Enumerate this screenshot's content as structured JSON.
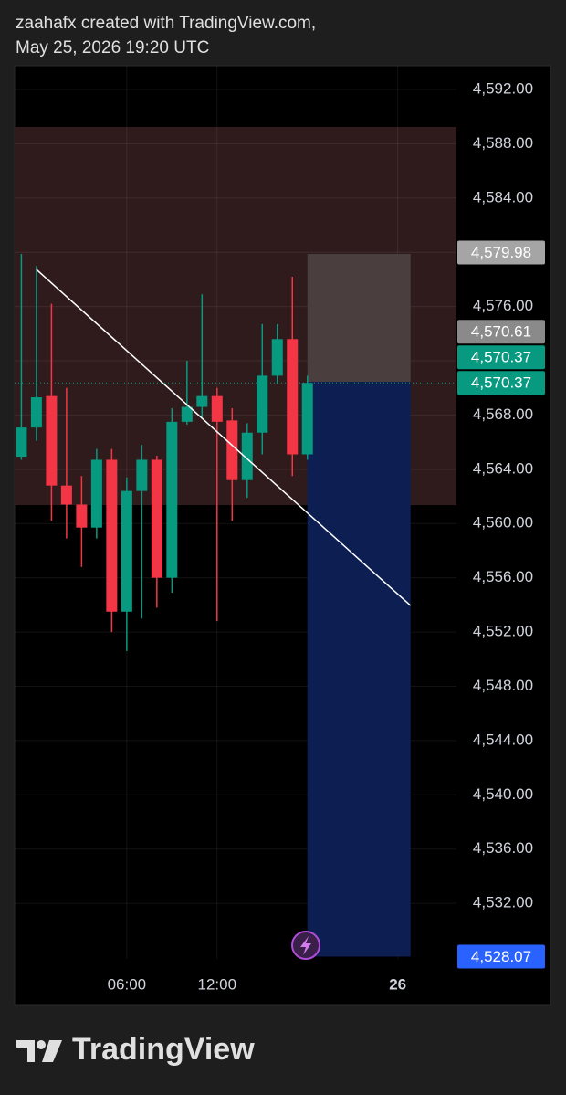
{
  "header": {
    "line1": "zaahafx created with TradingView.com,",
    "line2": "May 25, 2026 19:20 UTC"
  },
  "footer": {
    "brand": "TradingView"
  },
  "chart_data": {
    "type": "candlestick",
    "x": [
      -1,
      0,
      1,
      2,
      3,
      4,
      5,
      6,
      7,
      8,
      9,
      10,
      11,
      12,
      13,
      14,
      15,
      16,
      17,
      18
    ],
    "open": [
      4564.93,
      4567.08,
      4569.4,
      4562.8,
      4561.4,
      4559.7,
      4564.7,
      4553.5,
      4562.4,
      4564.7,
      4556.0,
      4567.5,
      4568.6,
      4569.4,
      4567.6,
      4563.2,
      4566.7,
      4570.9,
      4573.6,
      4565.1
    ],
    "high": [
      4579.88,
      4579.0,
      4576.2,
      4570.0,
      4563.5,
      4565.5,
      4565.5,
      4563.4,
      4565.8,
      4565.0,
      4568.5,
      4572.0,
      4576.9,
      4570.0,
      4568.5,
      4567.4,
      4574.7,
      4574.7,
      4578.2,
      4570.9
    ],
    "low": [
      4564.7,
      4566.1,
      4560.2,
      4558.9,
      4556.8,
      4558.9,
      4552.0,
      4550.6,
      4553.0,
      4553.8,
      4554.9,
      4567.3,
      4567.8,
      4552.8,
      4560.2,
      4561.9,
      4565.1,
      4570.3,
      4563.5,
      4564.7
    ],
    "close": [
      4567.08,
      4569.31,
      4562.8,
      4561.4,
      4559.7,
      4564.7,
      4553.5,
      4562.4,
      4564.7,
      4556.0,
      4567.5,
      4568.6,
      4569.4,
      4567.5,
      4563.2,
      4566.7,
      4570.9,
      4573.6,
      4565.1,
      4570.37
    ],
    "up_color": "#089981",
    "down_color": "#f23645",
    "xlim": [
      -1.45,
      27.9
    ],
    "xticks": [
      {
        "value": 6,
        "label": "06:00"
      },
      {
        "value": 12,
        "label": "12:00"
      },
      {
        "value": 24,
        "label": "26"
      }
    ],
    "ylim": [
      4527.9,
      4593.75
    ],
    "yticks": [
      {
        "value": 4532,
        "label": "4,532.00"
      },
      {
        "value": 4536,
        "label": "4,536.00"
      },
      {
        "value": 4540,
        "label": "4,540.00"
      },
      {
        "value": 4544,
        "label": "4,544.00"
      },
      {
        "value": 4548,
        "label": "4,548.00"
      },
      {
        "value": 4552,
        "label": "4,552.00"
      },
      {
        "value": 4556,
        "label": "4,556.00"
      },
      {
        "value": 4560,
        "label": "4,560.00"
      },
      {
        "value": 4564,
        "label": "4,564.00"
      },
      {
        "value": 4568,
        "label": "4,568.00"
      },
      {
        "value": 4572,
        "label": "4,572.00"
      },
      {
        "value": 4576,
        "label": "4,576.00"
      },
      {
        "value": 4580,
        "label": "4,580.00"
      },
      {
        "value": 4584,
        "label": "4,584.00"
      },
      {
        "value": 4588,
        "label": "4,588.00"
      },
      {
        "value": 4592,
        "label": "4,592.00"
      }
    ],
    "grid": true,
    "zone": {
      "low": 4561.36,
      "high": 4589.24,
      "color": "#301b1c"
    },
    "boxes": [
      {
        "x": [
          18,
          24.85
        ],
        "low": 4570.45,
        "high": 4579.88,
        "color": "#4a3e3f"
      },
      {
        "x": [
          18,
          24.85
        ],
        "low": 4528.07,
        "high": 4570.45,
        "color": "#0d1f52"
      }
    ],
    "trend_line": {
      "x": [
        0,
        24.85
      ],
      "y": [
        4578.73,
        4553.95
      ],
      "color": "#ffffff"
    },
    "price_line": {
      "value": 4570.37,
      "color": "#089981"
    },
    "price_labels": [
      {
        "value": 4579.98,
        "label": "4,579.98",
        "color": "#a5a5a5"
      },
      {
        "value": 4570.61,
        "label": "4,570.61",
        "color": "#8a8a8a"
      },
      {
        "value": 4570.37,
        "label": "4,570.37",
        "color": "#089981"
      },
      {
        "value": 4570.37,
        "label": "4,570.37",
        "color": "#089981"
      },
      {
        "value": 4528.07,
        "label": "4,528.07",
        "color": "#2962ff"
      }
    ]
  }
}
